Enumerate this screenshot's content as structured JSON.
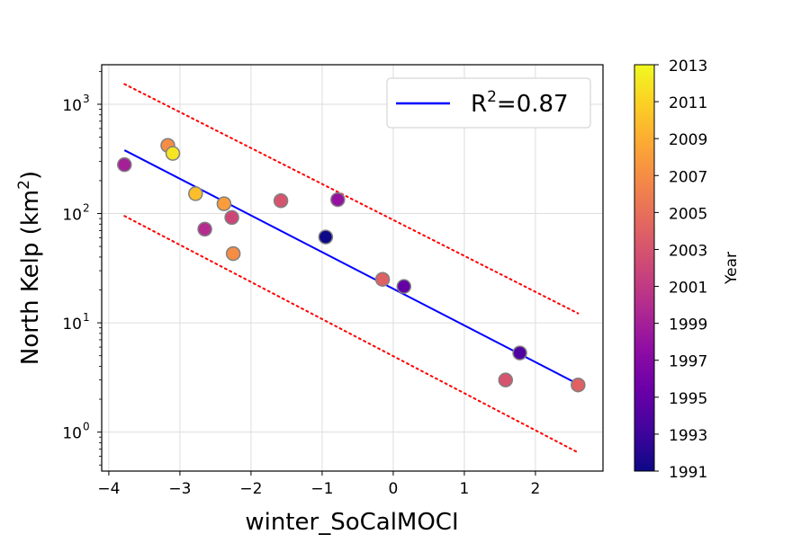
{
  "chart_data": {
    "type": "scatter",
    "xlabel": "winter_SoCalMOCI",
    "ylabel_main": "North Kelp (km",
    "ylabel_sup": "2",
    "ylabel_end": ")",
    "xlim": [
      -4.1,
      2.95
    ],
    "ylim_log": [
      0.44,
      2300
    ],
    "y_scale": "log",
    "grid": true,
    "x_ticks": [
      {
        "value": -4,
        "label": "−4"
      },
      {
        "value": -3,
        "label": "−3"
      },
      {
        "value": -2,
        "label": "−2"
      },
      {
        "value": -1,
        "label": "−1"
      },
      {
        "value": 0,
        "label": "0"
      },
      {
        "value": 1,
        "label": "1"
      },
      {
        "value": 2,
        "label": "2"
      }
    ],
    "y_ticks": [
      {
        "value": 1,
        "base": "10",
        "exp": "0"
      },
      {
        "value": 10,
        "base": "10",
        "exp": "1"
      },
      {
        "value": 100,
        "base": "10",
        "exp": "2"
      },
      {
        "value": 1000,
        "base": "10",
        "exp": "3"
      }
    ],
    "points": [
      {
        "x": -3.78,
        "y": 280,
        "year": 1999
      },
      {
        "x": -3.17,
        "y": 420,
        "year": 2007
      },
      {
        "x": -3.1,
        "y": 355,
        "year": 2012
      },
      {
        "x": -2.78,
        "y": 152,
        "year": 2010
      },
      {
        "x": -2.65,
        "y": 72,
        "year": 2000
      },
      {
        "x": -2.38,
        "y": 123,
        "year": 2008
      },
      {
        "x": -2.27,
        "y": 92,
        "year": 2002
      },
      {
        "x": -2.25,
        "y": 43,
        "year": 2007
      },
      {
        "x": -1.58,
        "y": 131,
        "year": 2003
      },
      {
        "x": -0.95,
        "y": 61,
        "year": 1991
      },
      {
        "x": -0.78,
        "y": 134,
        "year": 1998
      },
      {
        "x": -0.15,
        "y": 25,
        "year": 2004
      },
      {
        "x": 0.15,
        "y": 21.5,
        "year": 1995
      },
      {
        "x": 1.58,
        "y": 3.0,
        "year": 2003
      },
      {
        "x": 1.78,
        "y": 5.3,
        "year": 1994
      },
      {
        "x": 2.6,
        "y": 2.7,
        "year": 2004
      }
    ],
    "fit_line": {
      "x": [
        -3.78,
        2.6
      ],
      "y": [
        380,
        2.75
      ],
      "color": "#0000ff"
    },
    "bounds": [
      {
        "x": [
          -3.78,
          2.6
        ],
        "y": [
          1530,
          12.2
        ]
      },
      {
        "x": [
          -3.78,
          2.6
        ],
        "y": [
          95,
          0.65
        ]
      }
    ],
    "bound_color": "#ff0000",
    "legend": {
      "location": "top-right",
      "label_main": "R",
      "label_sup": "2",
      "label_end": "=0.87"
    },
    "colorbar": {
      "label": "Year",
      "min": 1991,
      "max": 2013,
      "ticks": [
        "1991",
        "1993",
        "1995",
        "1997",
        "1999",
        "2001",
        "2003",
        "2005",
        "2007",
        "2009",
        "2011",
        "2013"
      ],
      "colormap": "plasma"
    }
  }
}
